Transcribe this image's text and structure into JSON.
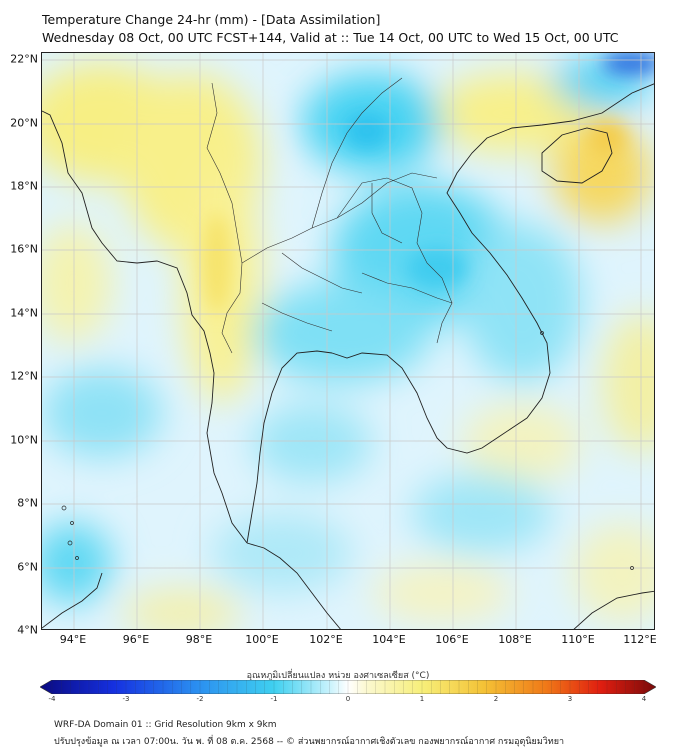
{
  "header": {
    "title": "Temperature Change 24-hr (mm) - [Data Assimilation]",
    "subtitle": "Wednesday 08 Oct, 00 UTC FCST+144, Valid at :: Tue 14 Oct, 00 UTC to Wed 15 Oct, 00 UTC"
  },
  "axes": {
    "lat_labels": [
      "22°N",
      "20°N",
      "18°N",
      "16°N",
      "14°N",
      "12°N",
      "10°N",
      "8°N",
      "6°N",
      "4°N"
    ],
    "lon_labels": [
      "94°E",
      "96°E",
      "98°E",
      "100°E",
      "102°E",
      "104°E",
      "106°E",
      "108°E",
      "110°E",
      "112°E"
    ]
  },
  "colorbar": {
    "label": "อุณหภูมิเปลี่ยนแปลง หน่วย องศาเซลเซียส (°C)",
    "ticks": [
      "-4",
      "-3",
      "-2",
      "-1",
      "0",
      "1",
      "2",
      "3",
      "4"
    ],
    "min": -4,
    "max": 4
  },
  "footer": {
    "line1": "WRF-DA Domain 01 :: Grid Resolution 9km x 9km",
    "line2": "ปรับปรุงข้อมูล ณ เวลา 07:00น. วัน พ. ที่ 08 ต.ค. 2568 -- © ส่วนพยากรณ์อากาศเชิงตัวเลข กองพยากรณ์อากาศ กรมอุตุนิยมวิทยา"
  },
  "colors": {
    "cold": "#3fd0f0",
    "neutral": "#eef8ff",
    "warm": "#f7ef7a",
    "coast": "#222222",
    "grid": "#c9c9c9"
  }
}
